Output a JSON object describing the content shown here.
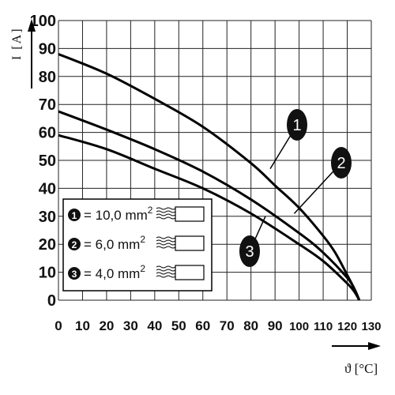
{
  "chart_data": {
    "type": "line",
    "xlabel": "ϑ [°C]",
    "ylabel": "I [A]",
    "xlim": [
      0,
      130
    ],
    "ylim": [
      0,
      100
    ],
    "grid": true,
    "x_ticks": [
      0,
      10,
      20,
      30,
      40,
      50,
      60,
      70,
      80,
      90,
      100,
      110,
      120,
      130
    ],
    "y_ticks": [
      0,
      10,
      20,
      30,
      40,
      50,
      60,
      70,
      80,
      90,
      100
    ],
    "series": [
      {
        "marker": "1",
        "x": [
          0,
          20,
          40,
          60,
          80,
          90,
          100,
          110,
          115,
          120,
          123,
          125
        ],
        "y": [
          88,
          81,
          72,
          62,
          49,
          41,
          33,
          23,
          17,
          9,
          4,
          0
        ]
      },
      {
        "marker": "2",
        "x": [
          0,
          20,
          40,
          60,
          80,
          100,
          110,
          120,
          123,
          125
        ],
        "y": [
          67.5,
          61,
          54,
          46,
          36,
          24,
          17,
          8,
          4,
          0
        ]
      },
      {
        "marker": "3",
        "x": [
          0,
          20,
          40,
          60,
          80,
          100,
          110,
          120,
          123,
          125
        ],
        "y": [
          59,
          54,
          47,
          40,
          31,
          20,
          14,
          6,
          3,
          0
        ]
      }
    ],
    "callouts": [
      {
        "marker": "1",
        "x": 88,
        "y": 47
      },
      {
        "marker": "2",
        "x": 98,
        "y": 31
      },
      {
        "marker": "3",
        "x": 86,
        "y": 30
      }
    ],
    "legend": {
      "placement": "lower-left",
      "entries": [
        {
          "marker": "1",
          "prefix": "= 10,0 mm",
          "sup": "2"
        },
        {
          "marker": "2",
          "prefix": "= 6,0 mm",
          "sup": "2"
        },
        {
          "marker": "3",
          "prefix": "= 4,0 mm",
          "sup": "2"
        }
      ]
    }
  }
}
